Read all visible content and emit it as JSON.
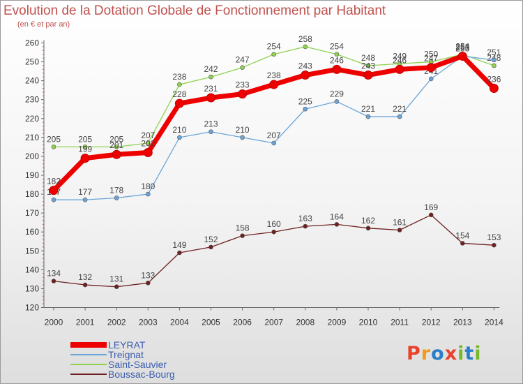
{
  "chart_data": {
    "type": "line",
    "title": "Evolution de la Dotation Globale de Fonctionnement par Habitant",
    "subtitle": "(en € et par an)",
    "x": [
      "2000",
      "2001",
      "2002",
      "2003",
      "2004",
      "2005",
      "2006",
      "2007",
      "2008",
      "2009",
      "2010",
      "2011",
      "2012",
      "2013",
      "2014"
    ],
    "ylim": [
      120,
      260
    ],
    "yticks": [
      120,
      130,
      140,
      150,
      160,
      170,
      180,
      190,
      200,
      210,
      220,
      230,
      240,
      250,
      260
    ],
    "grid": false,
    "legend_position": "bottom-left",
    "series": [
      {
        "name": "Saint-Sauvier",
        "color": "#8fd14f",
        "values": [
          205,
          205,
          205,
          207,
          238,
          242,
          247,
          254,
          258,
          254,
          248,
          249,
          250,
          254,
          248
        ]
      },
      {
        "name": "Treignat",
        "color": "#6aa5d9",
        "values": [
          177,
          177,
          178,
          180,
          210,
          213,
          210,
          207,
          225,
          229,
          221,
          221,
          241,
          253,
          251
        ]
      },
      {
        "name": "Boussac-Bourg",
        "color": "#6e1f1f",
        "values": [
          134,
          132,
          131,
          133,
          149,
          152,
          158,
          160,
          163,
          164,
          162,
          161,
          169,
          154,
          153
        ]
      },
      {
        "name": "LEYRAT",
        "color": "#ee0000",
        "values": [
          182,
          199,
          201,
          202,
          228,
          231,
          233,
          238,
          243,
          246,
          243,
          246,
          247,
          253,
          236
        ]
      }
    ],
    "legend_order": [
      "LEYRAT",
      "Treignat",
      "Saint-Sauvier",
      "Boussac-Bourg"
    ]
  },
  "watermark": "Proxiti",
  "watermark_colors": [
    "#e8412c",
    "#f29a1f",
    "#2a7dc7",
    "#e8412c",
    "#79b829",
    "#2a7dc7",
    "#79b829"
  ]
}
